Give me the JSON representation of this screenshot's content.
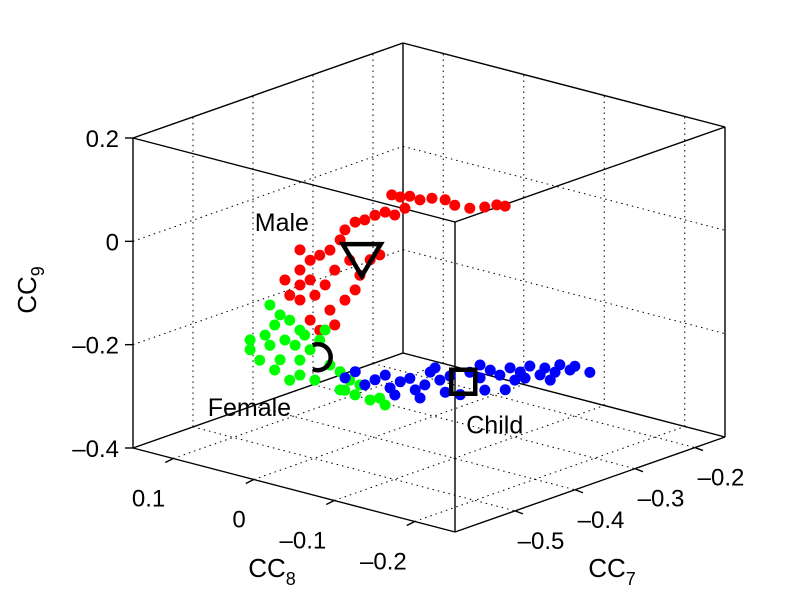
{
  "chart_data": {
    "type": "scatter3d",
    "title": "",
    "axes": {
      "x": {
        "label": "CC",
        "subscript": "7",
        "range": [
          -0.6,
          -0.15
        ],
        "ticks": [
          -0.5,
          -0.4,
          -0.3,
          -0.2
        ],
        "tick_labels": [
          "–0.5",
          "–0.4",
          "–0.3",
          "–0.2"
        ]
      },
      "y": {
        "label": "CC",
        "subscript": "8",
        "range": [
          0.15,
          -0.25
        ],
        "ticks": [
          0.1,
          0,
          -0.1,
          -0.2
        ],
        "tick_labels": [
          "0.1",
          "0",
          "–0.1",
          "–0.2"
        ]
      },
      "z": {
        "label": "CC",
        "subscript": "9",
        "range": [
          -0.4,
          0.2
        ],
        "ticks": [
          0.2,
          0,
          -0.2,
          -0.4
        ],
        "tick_labels": [
          "0.2",
          "0",
          "–0.2",
          "–0.4"
        ]
      }
    },
    "grid": true,
    "box": true,
    "series": [
      {
        "color": "#ff0000",
        "points": [
          [
            -0.37,
            0,
            0.057
          ],
          [
            -0.356,
            0,
            0.047
          ],
          [
            -0.34,
            0,
            0.042
          ],
          [
            -0.323,
            0,
            0.028
          ],
          [
            -0.303,
            0,
            0.023
          ],
          [
            -0.281,
            0,
            0.011
          ],
          [
            -0.265,
            0,
            -0.006
          ],
          [
            -0.24,
            0,
            -0.022
          ],
          [
            -0.215,
            0,
            -0.03
          ],
          [
            -0.195,
            0,
            -0.034
          ],
          [
            -0.181,
            0,
            -0.042
          ],
          [
            -0.348,
            0,
            0.022
          ],
          [
            -0.365,
            0,
            0.016
          ],
          [
            -0.381,
            0,
            0.028
          ],
          [
            -0.398,
            0,
            0.029
          ],
          [
            -0.415,
            0,
            0.027
          ],
          [
            -0.431,
            0,
            0.029
          ],
          [
            -0.448,
            0,
            0.021
          ],
          [
            -0.456,
            0,
            0.005
          ],
          [
            -0.473,
            0,
            -0.008
          ],
          [
            -0.49,
            0,
            -0.011
          ],
          [
            -0.506,
            0,
            -0.014
          ],
          [
            -0.523,
            0,
            0.013
          ],
          [
            -0.523,
            0,
            -0.026
          ],
          [
            -0.506,
            0,
            -0.052
          ],
          [
            -0.54,
            0,
            -0.068
          ],
          [
            -0.523,
            0,
            -0.084
          ],
          [
            -0.498,
            0,
            -0.085
          ],
          [
            -0.481,
            0,
            -0.072
          ],
          [
            -0.465,
            0,
            -0.05
          ],
          [
            -0.44,
            0,
            -0.041
          ],
          [
            -0.423,
            0,
            -0.077
          ],
          [
            -0.448,
            0,
            -0.115
          ],
          [
            -0.473,
            0,
            -0.124
          ],
          [
            -0.506,
            0,
            -0.13
          ],
          [
            -0.49,
            0,
            -0.156
          ],
          [
            -0.548,
            0,
            -0.035
          ],
          [
            -0.523,
            0,
            -0.055
          ],
          [
            -0.465,
            0,
            -0.156
          ],
          [
            -0.431,
            0,
            -0.102
          ],
          [
            -0.406,
            0,
            -0.054
          ],
          [
            -0.39,
            0,
            -0.051
          ]
        ]
      },
      {
        "color": "#00ff00",
        "points": [
          [
            -0.506,
            0.05,
            -0.121
          ],
          [
            -0.489,
            0.05,
            -0.147
          ],
          [
            -0.498,
            0.05,
            -0.163
          ],
          [
            -0.473,
            0.05,
            -0.164
          ],
          [
            -0.456,
            0.05,
            -0.19
          ],
          [
            -0.481,
            0.05,
            -0.199
          ],
          [
            -0.464,
            0.05,
            -0.216
          ],
          [
            -0.506,
            0.05,
            -0.199
          ],
          [
            -0.539,
            0.05,
            -0.194
          ],
          [
            -0.523,
            0.05,
            -0.221
          ],
          [
            -0.489,
            0.05,
            -0.234
          ],
          [
            -0.456,
            0.05,
            -0.248
          ],
          [
            -0.498,
            0.05,
            -0.25
          ],
          [
            -0.456,
            0.05,
            -0.277
          ],
          [
            -0.431,
            0.05,
            -0.297
          ],
          [
            -0.439,
            0.05,
            -0.235
          ],
          [
            -0.423,
            0.05,
            -0.223
          ],
          [
            -0.406,
            0.05,
            -0.278
          ],
          [
            -0.389,
            0.05,
            -0.298
          ],
          [
            -0.373,
            0.05,
            -0.321
          ],
          [
            -0.381,
            0.05,
            -0.337
          ],
          [
            -0.364,
            0.05,
            -0.353
          ],
          [
            -0.339,
            0.05,
            -0.373
          ],
          [
            -0.323,
            0.05,
            -0.376
          ],
          [
            -0.314,
            0.05,
            -0.393
          ],
          [
            -0.514,
            0.05,
            -0.176
          ],
          [
            -0.448,
            0.05,
            -0.203
          ],
          [
            -0.414,
            0.05,
            -0.207
          ],
          [
            -0.389,
            0.05,
            -0.333
          ],
          [
            -0.356,
            0.05,
            -0.337
          ],
          [
            -0.473,
            0.05,
            -0.28
          ],
          [
            -0.539,
            0.05,
            -0.175
          ]
        ]
      },
      {
        "color": "#0000ff",
        "points": [
          [
            -0.582,
            -0.1,
            -0.17
          ],
          [
            -0.565,
            -0.1,
            -0.165
          ],
          [
            -0.549,
            -0.1,
            -0.197
          ],
          [
            -0.532,
            -0.1,
            -0.194
          ],
          [
            -0.515,
            -0.1,
            -0.192
          ],
          [
            -0.507,
            -0.1,
            -0.22
          ],
          [
            -0.49,
            -0.1,
            -0.215
          ],
          [
            -0.474,
            -0.1,
            -0.215
          ],
          [
            -0.465,
            -0.1,
            -0.241
          ],
          [
            -0.449,
            -0.1,
            -0.238
          ],
          [
            -0.44,
            -0.1,
            -0.217
          ],
          [
            -0.424,
            -0.1,
            -0.239
          ],
          [
            -0.415,
            -0.1,
            -0.266
          ],
          [
            -0.407,
            -0.1,
            -0.238
          ],
          [
            -0.374,
            -0.1,
            -0.244
          ],
          [
            -0.357,
            -0.1,
            -0.262
          ],
          [
            -0.349,
            -0.1,
            -0.289
          ],
          [
            -0.34,
            -0.1,
            -0.254
          ],
          [
            -0.324,
            -0.1,
            -0.27
          ],
          [
            -0.307,
            -0.1,
            -0.263
          ],
          [
            -0.299,
            -0.1,
            -0.29
          ],
          [
            -0.29,
            -0.1,
            -0.278
          ],
          [
            -0.274,
            -0.1,
            -0.273
          ],
          [
            -0.257,
            -0.1,
            -0.297
          ],
          [
            -0.249,
            -0.1,
            -0.287
          ],
          [
            -0.232,
            -0.1,
            -0.302
          ],
          [
            -0.224,
            -0.1,
            -0.291
          ],
          [
            -0.207,
            -0.1,
            -0.308
          ],
          [
            -0.199,
            -0.1,
            -0.304
          ],
          [
            -0.174,
            -0.1,
            -0.326
          ],
          [
            -0.315,
            -0.1,
            -0.302
          ],
          [
            -0.39,
            -0.1,
            -0.281
          ],
          [
            -0.457,
            -0.1,
            -0.26
          ],
          [
            -0.499,
            -0.1,
            -0.237
          ],
          [
            -0.282,
            -0.1,
            -0.293
          ],
          [
            -0.24,
            -0.1,
            -0.314
          ],
          [
            -0.357,
            -0.1,
            -0.237
          ],
          [
            -0.432,
            -0.1,
            -0.212
          ]
        ]
      }
    ],
    "markers": [
      {
        "label": "Male",
        "shape": "triangle-down",
        "point": [
          -0.42,
          0,
          -0.045
        ]
      },
      {
        "label": "Female",
        "shape": "circle",
        "point": [
          -0.423,
          0.05,
          -0.256
        ]
      },
      {
        "label": "Child",
        "shape": "square",
        "point": [
          -0.385,
          -0.1,
          -0.258
        ]
      }
    ]
  }
}
